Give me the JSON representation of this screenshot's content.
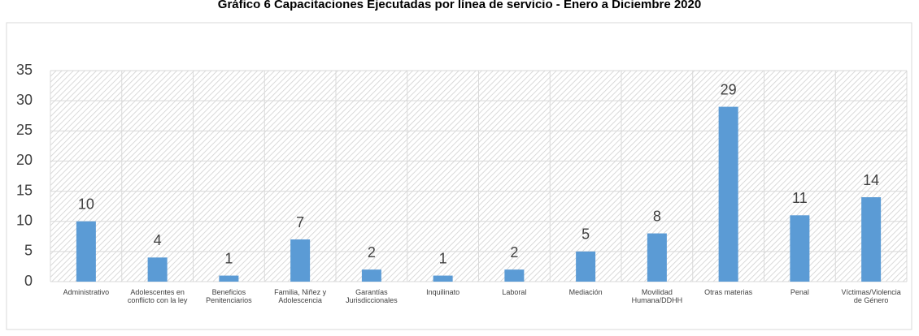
{
  "chart_data": {
    "type": "bar",
    "title": "Gráfico 6 Capacitaciones Ejecutadas por línea de servicio - Enero a Diciembre 2020",
    "categories": [
      "Administrativo",
      "Adolescentes en conflicto con la ley",
      "Beneficios Penitenciarios",
      "Familia, Niñez y Adolescencia",
      "Garantías Jurisdiccionales",
      "Inquilinato",
      "Laboral",
      "Mediación",
      "Movilidad Humana/DDHH",
      "Otras materias",
      "Penal",
      "Víctimas/Violencia de Género"
    ],
    "values": [
      10,
      4,
      1,
      7,
      2,
      1,
      2,
      5,
      8,
      29,
      11,
      14
    ],
    "color": "#5b9bd5",
    "ylim": [
      0,
      35
    ],
    "yticks": [
      0,
      5,
      10,
      15,
      20,
      25,
      30,
      35
    ],
    "grid": true
  }
}
